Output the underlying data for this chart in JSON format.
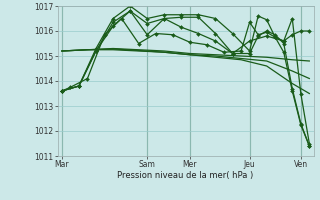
{
  "bg_color": "#cce8e8",
  "grid_color": "#99cccc",
  "line_color": "#1a5c1a",
  "marker": "D",
  "marker_size": 2.0,
  "xlabel": "Pression niveau de la mer( hPa )",
  "ylim": [
    1011,
    1017
  ],
  "yticks": [
    1011,
    1012,
    1013,
    1014,
    1015,
    1016,
    1017
  ],
  "xtick_labels": [
    "Mar",
    "Sam",
    "Mer",
    "Jeu",
    "Ven"
  ],
  "xtick_positions": [
    0,
    10,
    15,
    22,
    28
  ],
  "s1_x": [
    0,
    1,
    3,
    5,
    7,
    9,
    11,
    13,
    15,
    17,
    19,
    21,
    22,
    23,
    24,
    25,
    26,
    27,
    28,
    29
  ],
  "s1_y": [
    1013.6,
    1013.75,
    1014.1,
    1015.85,
    1016.5,
    1015.5,
    1015.9,
    1015.85,
    1015.55,
    1015.45,
    1015.15,
    1015.2,
    1016.35,
    1015.85,
    1015.95,
    1015.75,
    1015.15,
    1013.6,
    1012.25,
    1011.4
  ],
  "s2_x": [
    0,
    2,
    4,
    6,
    8,
    10,
    12,
    14,
    16,
    18,
    20,
    22,
    23,
    24,
    25,
    26,
    27,
    28,
    29
  ],
  "s2_y": [
    1013.6,
    1013.8,
    1015.3,
    1016.5,
    1017.0,
    1016.5,
    1016.65,
    1016.65,
    1016.65,
    1016.5,
    1015.9,
    1015.2,
    1016.6,
    1016.45,
    1015.75,
    1015.6,
    1016.5,
    1013.5,
    1011.5
  ],
  "s3_x": [
    0,
    2,
    4,
    6,
    8,
    10,
    12,
    14,
    16,
    18,
    20,
    22,
    23,
    24,
    25,
    26,
    27,
    28,
    29
  ],
  "s3_y": [
    1013.6,
    1013.8,
    1015.2,
    1016.2,
    1016.8,
    1016.3,
    1016.5,
    1016.55,
    1016.55,
    1015.9,
    1015.1,
    1015.1,
    1015.8,
    1016.0,
    1015.85,
    1015.5,
    1013.7,
    1012.3,
    1011.4
  ],
  "s4_x": [
    0,
    2,
    4,
    6,
    8,
    10,
    12,
    14,
    16,
    18,
    20,
    22,
    24,
    26,
    27,
    28,
    29
  ],
  "s4_y": [
    1013.6,
    1013.8,
    1015.2,
    1016.35,
    1016.8,
    1015.85,
    1016.5,
    1016.15,
    1015.9,
    1015.6,
    1015.1,
    1015.6,
    1015.8,
    1015.6,
    1015.85,
    1016.0,
    1016.0
  ],
  "s5_x": [
    0,
    3,
    6,
    9,
    12,
    15,
    18,
    21,
    24,
    27,
    29
  ],
  "s5_y": [
    1015.2,
    1015.25,
    1015.3,
    1015.25,
    1015.2,
    1015.1,
    1015.05,
    1015.0,
    1014.95,
    1014.85,
    1014.8
  ],
  "s6_x": [
    0,
    3,
    6,
    9,
    12,
    15,
    18,
    21,
    24,
    27,
    29
  ],
  "s6_y": [
    1015.2,
    1015.25,
    1015.25,
    1015.2,
    1015.15,
    1015.05,
    1015.0,
    1014.9,
    1014.8,
    1014.4,
    1014.1
  ],
  "s7_x": [
    0,
    3,
    6,
    9,
    12,
    15,
    18,
    21,
    24,
    27,
    29
  ],
  "s7_y": [
    1015.2,
    1015.25,
    1015.28,
    1015.22,
    1015.15,
    1015.05,
    1014.95,
    1014.85,
    1014.6,
    1013.9,
    1013.5
  ],
  "vlines": [
    0,
    10,
    15,
    22,
    28
  ]
}
